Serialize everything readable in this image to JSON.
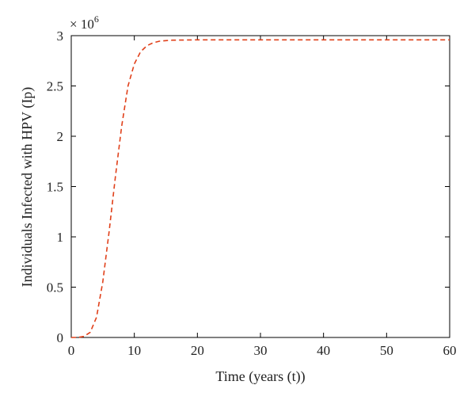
{
  "chart_data": {
    "type": "line",
    "title": "",
    "xlabel": "Time (years (t))",
    "ylabel": "Individuals Infected with HPV (Ip)",
    "y_multiplier_label": "× 10",
    "y_multiplier_exponent": "6",
    "xlim": [
      0,
      60
    ],
    "ylim": [
      0,
      3
    ],
    "x_ticks": [
      0,
      10,
      20,
      30,
      40,
      50,
      60
    ],
    "y_ticks": [
      0,
      0.5,
      1,
      1.5,
      2,
      2.5,
      3
    ],
    "y_tick_labels": [
      "0",
      "0.5",
      "1",
      "1.5",
      "2",
      "2.5",
      "3"
    ],
    "grid": false,
    "series": [
      {
        "color": "#e0401a",
        "style": "dashed",
        "x": [
          0,
          1,
          2,
          3,
          4,
          5,
          6,
          7,
          8,
          9,
          10,
          11,
          12,
          13,
          14,
          15,
          16,
          18,
          20,
          25,
          30,
          40,
          50,
          60
        ],
        "y": [
          0,
          0,
          0.01,
          0.05,
          0.2,
          0.55,
          1.05,
          1.6,
          2.1,
          2.5,
          2.72,
          2.84,
          2.9,
          2.93,
          2.945,
          2.95,
          2.955,
          2.957,
          2.958,
          2.958,
          2.958,
          2.958,
          2.958,
          2.958
        ]
      }
    ]
  }
}
